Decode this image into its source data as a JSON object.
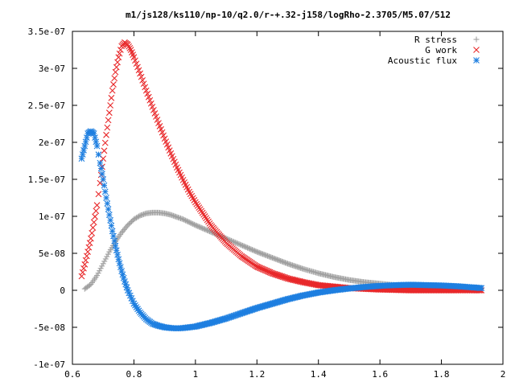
{
  "chart_data": {
    "type": "scatter",
    "title": "m1/js128/ks110/np-10/q2.0/r-+.32-j158/logRho-2.3705/M5.07/512",
    "xlabel": "",
    "ylabel": "",
    "xlim": [
      0.6,
      2.0
    ],
    "ylim": [
      -1e-07,
      3.5e-07
    ],
    "xticks": [
      "0.6",
      "0.8",
      "1",
      "1.2",
      "1.4",
      "1.6",
      "1.8",
      "2"
    ],
    "xtick_values": [
      0.6,
      0.8,
      1.0,
      1.2,
      1.4,
      1.6,
      1.8,
      2.0
    ],
    "yticks": [
      "-1e-07",
      "-5e-08",
      "0",
      "5e-08",
      "1e-07",
      "1.5e-07",
      "2e-07",
      "2.5e-07",
      "3e-07",
      "3.5e-07"
    ],
    "ytick_values": [
      -1e-07,
      -5e-08,
      0,
      5e-08,
      1e-07,
      1.5e-07,
      2e-07,
      2.5e-07,
      3e-07,
      3.5e-07
    ],
    "grid": false,
    "legend_position": "top-right",
    "series": [
      {
        "name": "R stress",
        "marker": "plus",
        "color": "#a0a0a0",
        "x": [
          0.64,
          0.66,
          0.68,
          0.7,
          0.72,
          0.74,
          0.76,
          0.78,
          0.8,
          0.82,
          0.84,
          0.86,
          0.88,
          0.9,
          0.92,
          0.94,
          0.96,
          0.98,
          1.0,
          1.05,
          1.1,
          1.15,
          1.2,
          1.25,
          1.3,
          1.35,
          1.4,
          1.45,
          1.5,
          1.55,
          1.6,
          1.65,
          1.7,
          1.75,
          1.8,
          1.85,
          1.9,
          1.93
        ],
        "y": [
          2e-09,
          8e-09,
          2e-08,
          3.6e-08,
          5.2e-08,
          6.6e-08,
          7.8e-08,
          8.8e-08,
          9.6e-08,
          1.01e-07,
          1.04e-07,
          1.05e-07,
          1.05e-07,
          1.04e-07,
          1.02e-07,
          9.9e-08,
          9.6e-08,
          9.2e-08,
          8.8e-08,
          7.9e-08,
          7e-08,
          6.1e-08,
          5.2e-08,
          4.4e-08,
          3.6e-08,
          2.9e-08,
          2.3e-08,
          1.8e-08,
          1.4e-08,
          1.1e-08,
          9e-09,
          7e-09,
          5e-09,
          4e-09,
          3e-09,
          2.5e-09,
          2e-09,
          2e-09
        ]
      },
      {
        "name": "G work",
        "marker": "cross",
        "color": "#e8282a",
        "x": [
          0.63,
          0.64,
          0.65,
          0.66,
          0.67,
          0.68,
          0.69,
          0.7,
          0.71,
          0.72,
          0.73,
          0.74,
          0.75,
          0.76,
          0.77,
          0.78,
          0.79,
          0.8,
          0.82,
          0.84,
          0.86,
          0.88,
          0.9,
          0.92,
          0.94,
          0.96,
          0.98,
          1.0,
          1.05,
          1.1,
          1.15,
          1.2,
          1.25,
          1.3,
          1.35,
          1.4,
          1.45,
          1.5,
          1.55,
          1.6,
          1.65,
          1.7,
          1.75,
          1.8,
          1.85,
          1.9,
          1.93
        ],
        "y": [
          1.9e-08,
          3.5e-08,
          5.2e-08,
          7e-08,
          9.2e-08,
          1.15e-07,
          1.45e-07,
          1.78e-07,
          2.1e-07,
          2.4e-07,
          2.7e-07,
          2.95e-07,
          3.15e-07,
          3.3e-07,
          3.35e-07,
          3.32e-07,
          3.25e-07,
          3.15e-07,
          2.93e-07,
          2.7e-07,
          2.48e-07,
          2.26e-07,
          2.05e-07,
          1.85e-07,
          1.66e-07,
          1.49e-07,
          1.33e-07,
          1.19e-07,
          8.8e-08,
          6.4e-08,
          4.6e-08,
          3.2e-08,
          2.3e-08,
          1.6e-08,
          1.1e-08,
          7e-09,
          5e-09,
          3e-09,
          2e-09,
          1e-09,
          5e-10,
          0.0,
          0.0,
          0.0,
          0.0,
          0.0,
          0.0
        ]
      },
      {
        "name": "Acoustic flux",
        "marker": "star",
        "color": "#1e7fe0",
        "x": [
          0.63,
          0.64,
          0.65,
          0.66,
          0.67,
          0.68,
          0.69,
          0.7,
          0.71,
          0.72,
          0.73,
          0.74,
          0.75,
          0.76,
          0.77,
          0.78,
          0.8,
          0.82,
          0.84,
          0.86,
          0.88,
          0.9,
          0.92,
          0.94,
          0.96,
          0.98,
          1.0,
          1.05,
          1.1,
          1.15,
          1.2,
          1.25,
          1.3,
          1.35,
          1.4,
          1.45,
          1.5,
          1.55,
          1.6,
          1.65,
          1.7,
          1.75,
          1.8,
          1.85,
          1.9,
          1.93
        ],
        "y": [
          1.78e-07,
          1.95e-07,
          2.12e-07,
          2.15e-07,
          2.12e-07,
          1.95e-07,
          1.72e-07,
          1.5e-07,
          1.25e-07,
          1.02e-07,
          8e-08,
          6e-08,
          4.2e-08,
          2.6e-08,
          1.2e-08,
          0.0,
          -1.8e-08,
          -3e-08,
          -3.9e-08,
          -4.5e-08,
          -4.8e-08,
          -5e-08,
          -5.1e-08,
          -5.15e-08,
          -5.1e-08,
          -5e-08,
          -4.9e-08,
          -4.4e-08,
          -3.8e-08,
          -3.1e-08,
          -2.4e-08,
          -1.8e-08,
          -1.2e-08,
          -7e-09,
          -3e-09,
          0.0,
          2.5e-09,
          4.5e-09,
          6e-09,
          7e-09,
          7.5e-09,
          7e-09,
          6.5e-09,
          5.5e-09,
          4e-09,
          3e-09
        ]
      }
    ]
  }
}
